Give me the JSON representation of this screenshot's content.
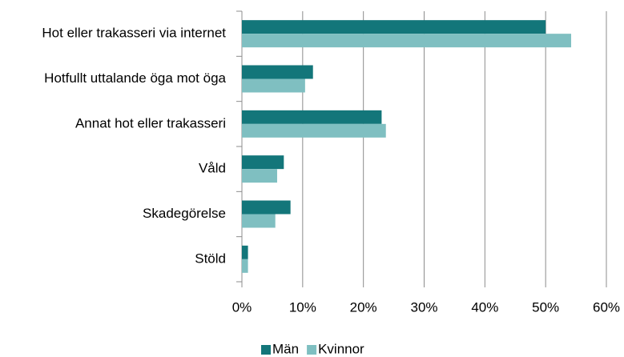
{
  "chart_data": {
    "type": "bar",
    "orientation": "horizontal",
    "categories": [
      "Hot eller trakasseri via internet",
      "Hotfullt uttalande öga mot öga",
      "Annat hot eller trakasseri",
      "Våld",
      "Skadegörelse",
      "Stöld"
    ],
    "series": [
      {
        "name": "Män",
        "color": "#13767a",
        "values": [
          50,
          11.7,
          23,
          6.9,
          8,
          1
        ]
      },
      {
        "name": "Kvinnor",
        "color": "#7fbfc1",
        "values": [
          54.2,
          10.4,
          23.7,
          5.8,
          5.5,
          1
        ]
      }
    ],
    "xlim": [
      0,
      60
    ],
    "xticks": [
      {
        "value": 0,
        "label": "0%"
      },
      {
        "value": 10,
        "label": "10%"
      },
      {
        "value": 20,
        "label": "20%"
      },
      {
        "value": 30,
        "label": "30%"
      },
      {
        "value": 40,
        "label": "40%"
      },
      {
        "value": 50,
        "label": "50%"
      },
      {
        "value": 60,
        "label": "60%"
      }
    ],
    "grid": true,
    "legend": "bottom"
  }
}
